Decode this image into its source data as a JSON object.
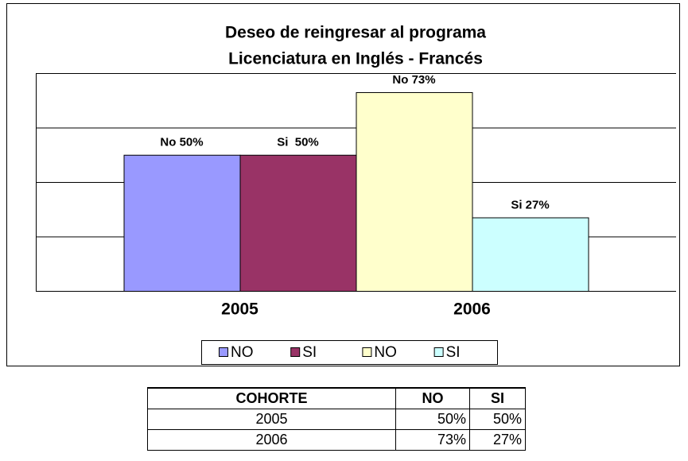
{
  "chart_data": {
    "type": "bar",
    "title": [
      "Deseo de reingresar al programa",
      "Licenciatura en Inglés - Francés"
    ],
    "categories": [
      "2005",
      "2006"
    ],
    "series": [
      {
        "name": "NO",
        "color": "#9999ff",
        "values": [
          50,
          null
        ],
        "value_labels": [
          "No 50%",
          null
        ]
      },
      {
        "name": "SI",
        "color": "#993366",
        "values": [
          50,
          null
        ],
        "value_labels": [
          "Si  50%",
          null
        ]
      },
      {
        "name": "NO",
        "color": "#ffffcc",
        "values": [
          null,
          73
        ],
        "value_labels": [
          null,
          "No 73%"
        ]
      },
      {
        "name": "SI",
        "color": "#ccffff",
        "values": [
          null,
          27
        ],
        "value_labels": [
          null,
          "Si 27%"
        ]
      }
    ],
    "ylim": [
      0,
      80
    ],
    "yticks": [
      0,
      20,
      40,
      60,
      80
    ],
    "grid": true,
    "legend": "bottom"
  },
  "table": {
    "header": [
      "COHORTE",
      "NO",
      "SI"
    ],
    "rows": [
      [
        "2005",
        "50%",
        "50%"
      ],
      [
        "2006",
        "73%",
        "27%"
      ]
    ]
  }
}
